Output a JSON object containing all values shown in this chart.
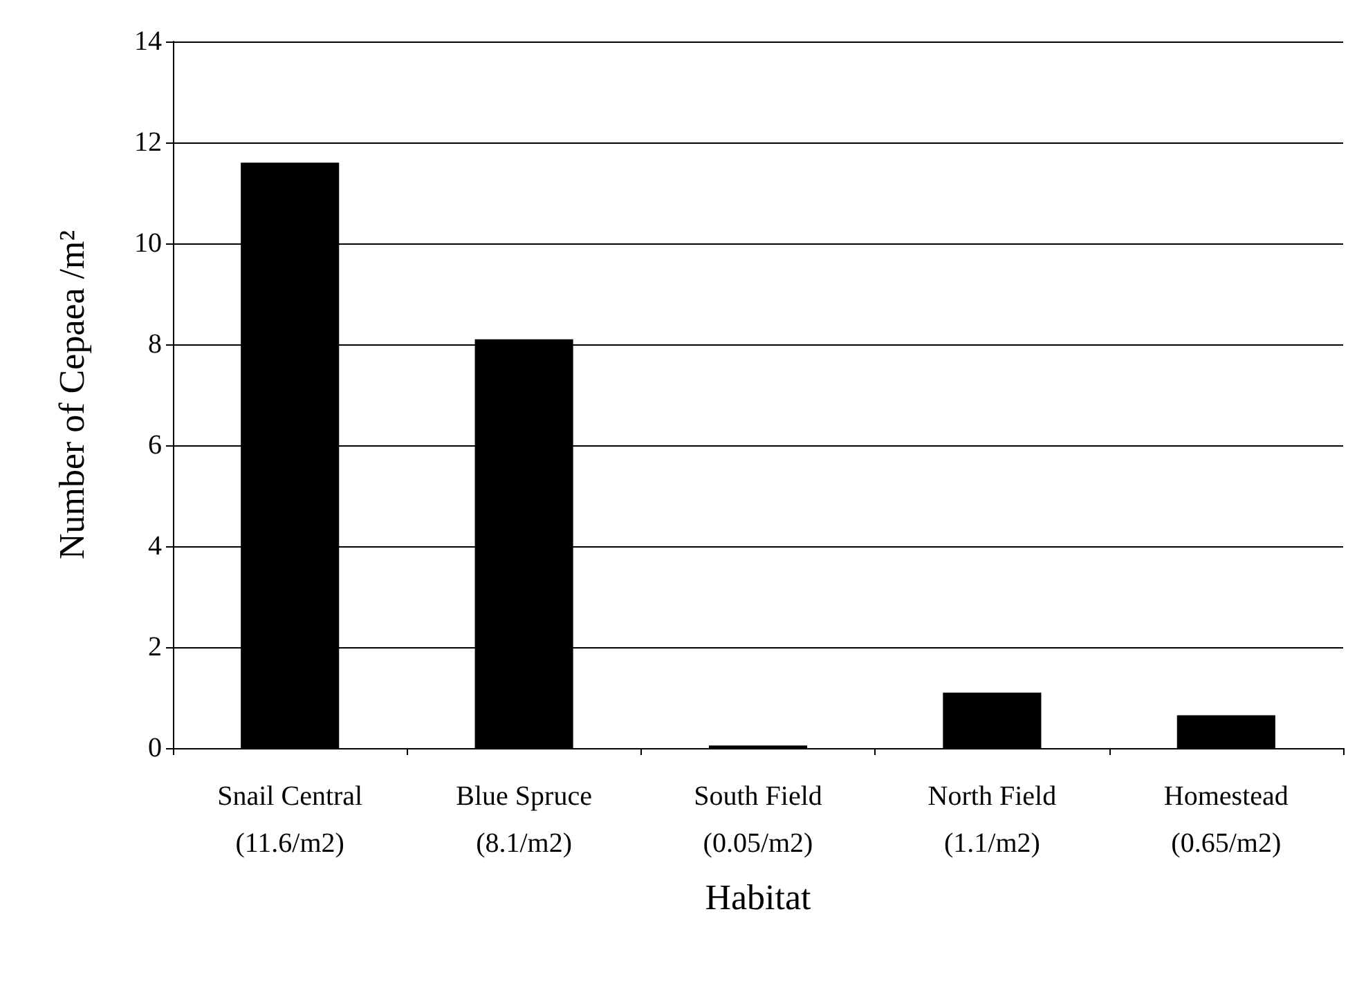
{
  "chart_data": {
    "type": "bar",
    "xlabel": "Habitat",
    "ylabel": "Number of Cepaea /m²",
    "categories": [
      "Snail Central\n(11.6/m2)",
      "Blue Spruce\n(8.1/m2)",
      "South Field\n(0.05/m2)",
      "North Field\n(1.1/m2)",
      "Homestead\n(0.65/m2)"
    ],
    "values": [
      11.6,
      8.1,
      0.05,
      1.1,
      0.65
    ],
    "color": "#000000",
    "ylim": [
      0,
      14
    ],
    "yticks": [
      0,
      2,
      4,
      6,
      8,
      10,
      12,
      14
    ],
    "grid": "y"
  }
}
